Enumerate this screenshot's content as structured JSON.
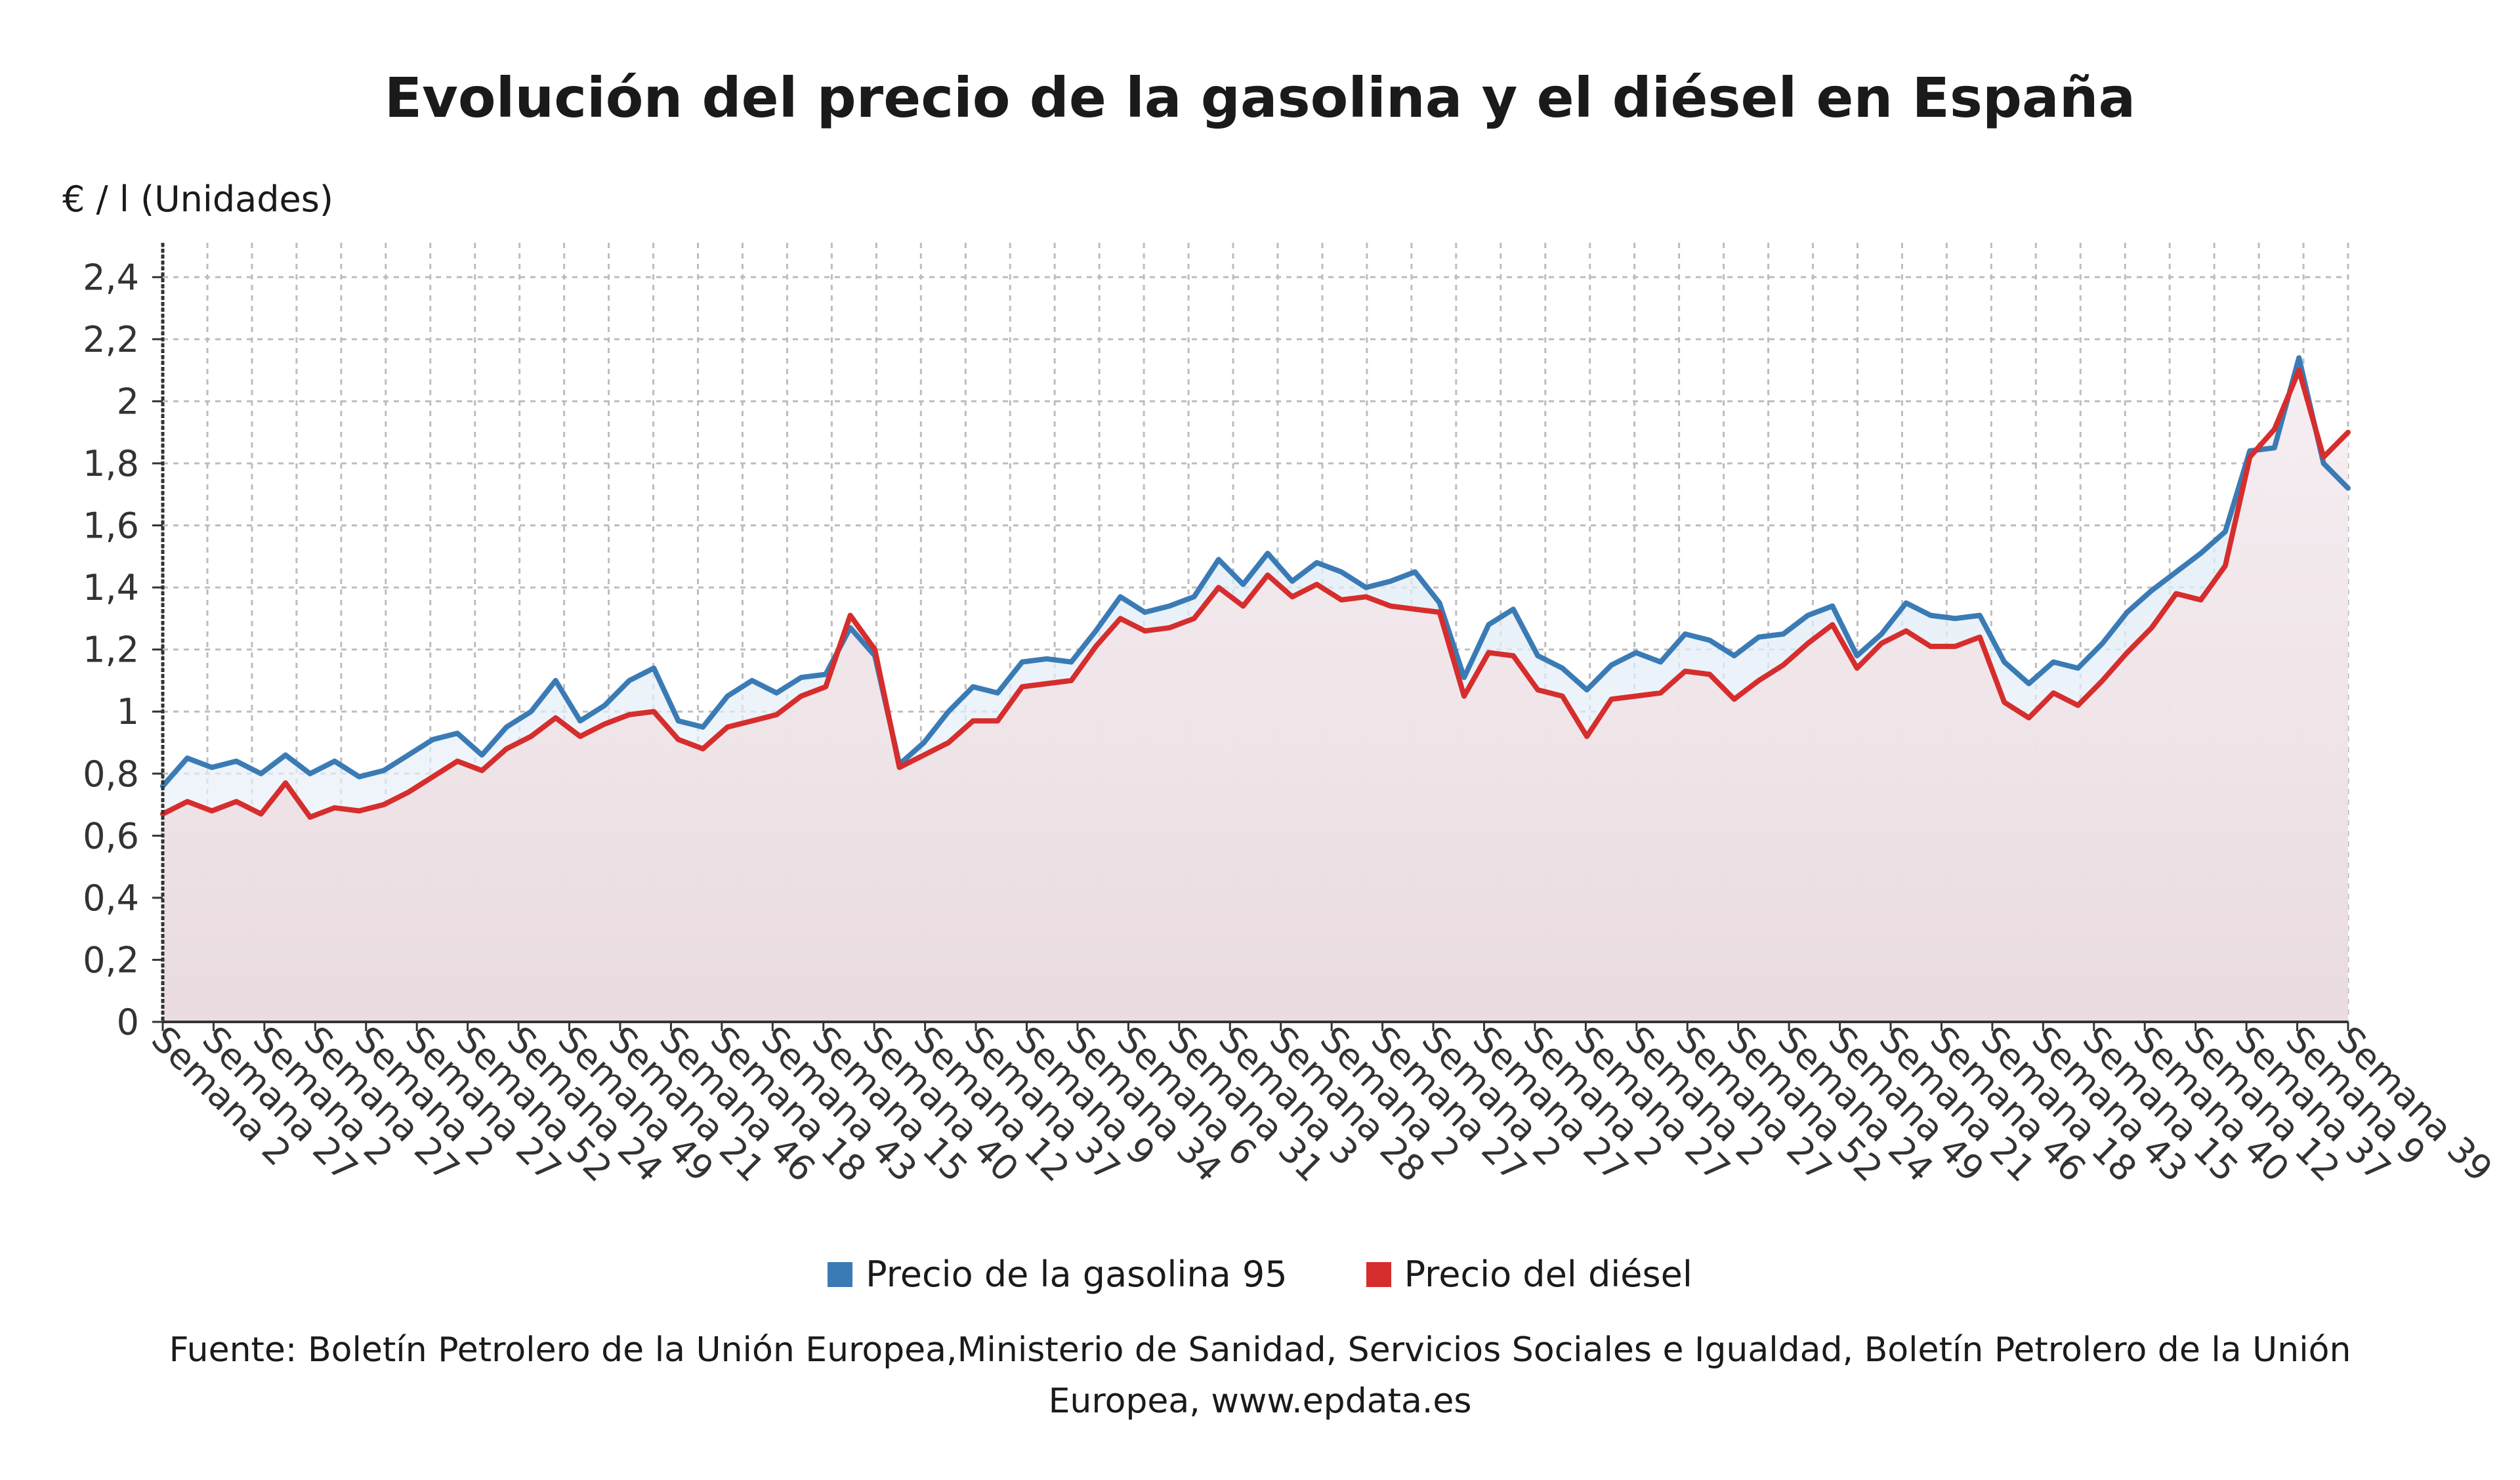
{
  "title": "Evolución del precio de la gasolina y el diésel en España",
  "unit_label": "€ / l (Unidades)",
  "legend": [
    {
      "name": "Precio de la gasolina 95",
      "color": "#3a7bb5"
    },
    {
      "name": "Precio del diésel",
      "color": "#d62d2d"
    }
  ],
  "source": "Fuente: Boletín Petrolero de la Unión Europea,Ministerio de Sanidad, Servicios Sociales e Igualdad, Boletín Petrolero de la Unión Europea, www.epdata.es",
  "chart_data": {
    "type": "line",
    "ylim": [
      0,
      2.5
    ],
    "yticks": [
      "0",
      "0,2",
      "0,4",
      "0,6",
      "0,8",
      "1",
      "1,2",
      "1,4",
      "1,6",
      "1,8",
      "2",
      "2,2",
      "2,4"
    ],
    "grid": true,
    "legend_position": "bottom",
    "x_tick_labels": [
      "Semana 2",
      "Semana 27",
      "Semana 2",
      "Semana 27",
      "Semana 2",
      "Semana 27",
      "Semana 52",
      "Semana 24",
      "Semana 49",
      "Semana 21",
      "Semana 46",
      "Semana 18",
      "Semana 43",
      "Semana 15",
      "Semana 40",
      "Semana 12",
      "Semana 37",
      "Semana 9",
      "Semana 34",
      "Semana 6",
      "Semana 31",
      "Semana 3",
      "Semana 28",
      "Semana 2",
      "Semana 27",
      "Semana 2",
      "Semana 27",
      "Semana 2",
      "Semana 27",
      "Semana 2",
      "Semana 27",
      "Semana 52",
      "Semana 24",
      "Semana 49",
      "Semana 21",
      "Semana 46",
      "Semana 18",
      "Semana 43",
      "Semana 15",
      "Semana 40",
      "Semana 12",
      "Semana 37",
      "Semana 9",
      "Semana 39"
    ],
    "series": [
      {
        "name": "Precio de la gasolina 95",
        "color": "#3a7bb5",
        "values": [
          0.76,
          0.85,
          0.82,
          0.84,
          0.8,
          0.86,
          0.8,
          0.84,
          0.79,
          0.81,
          0.86,
          0.91,
          0.93,
          0.86,
          0.95,
          1.0,
          1.1,
          0.97,
          1.02,
          1.1,
          1.14,
          0.97,
          0.95,
          1.05,
          1.1,
          1.06,
          1.11,
          1.12,
          1.27,
          1.18,
          0.83,
          0.9,
          1.0,
          1.08,
          1.06,
          1.16,
          1.17,
          1.16,
          1.26,
          1.37,
          1.32,
          1.34,
          1.37,
          1.49,
          1.41,
          1.51,
          1.42,
          1.48,
          1.45,
          1.4,
          1.42,
          1.45,
          1.35,
          1.11,
          1.28,
          1.33,
          1.18,
          1.14,
          1.07,
          1.15,
          1.19,
          1.16,
          1.25,
          1.23,
          1.18,
          1.24,
          1.25,
          1.31,
          1.34,
          1.18,
          1.25,
          1.35,
          1.31,
          1.3,
          1.31,
          1.16,
          1.09,
          1.16,
          1.14,
          1.22,
          1.32,
          1.39,
          1.45,
          1.51,
          1.58,
          1.84,
          1.85,
          2.14,
          1.8,
          1.72
        ]
      },
      {
        "name": "Precio del diésel",
        "color": "#d62d2d",
        "values": [
          0.67,
          0.71,
          0.68,
          0.71,
          0.67,
          0.77,
          0.66,
          0.69,
          0.68,
          0.7,
          0.74,
          0.79,
          0.84,
          0.81,
          0.88,
          0.92,
          0.98,
          0.92,
          0.96,
          0.99,
          1.0,
          0.91,
          0.88,
          0.95,
          0.97,
          0.99,
          1.05,
          1.08,
          1.31,
          1.2,
          0.82,
          0.86,
          0.9,
          0.97,
          0.97,
          1.08,
          1.09,
          1.1,
          1.21,
          1.3,
          1.26,
          1.27,
          1.3,
          1.4,
          1.34,
          1.44,
          1.37,
          1.41,
          1.36,
          1.37,
          1.34,
          1.33,
          1.32,
          1.05,
          1.19,
          1.18,
          1.07,
          1.05,
          0.92,
          1.04,
          1.05,
          1.06,
          1.13,
          1.12,
          1.04,
          1.1,
          1.15,
          1.22,
          1.28,
          1.14,
          1.22,
          1.26,
          1.21,
          1.21,
          1.24,
          1.03,
          0.98,
          1.06,
          1.02,
          1.1,
          1.19,
          1.27,
          1.38,
          1.36,
          1.47,
          1.82,
          1.91,
          2.1,
          1.82,
          1.9
        ]
      }
    ]
  }
}
